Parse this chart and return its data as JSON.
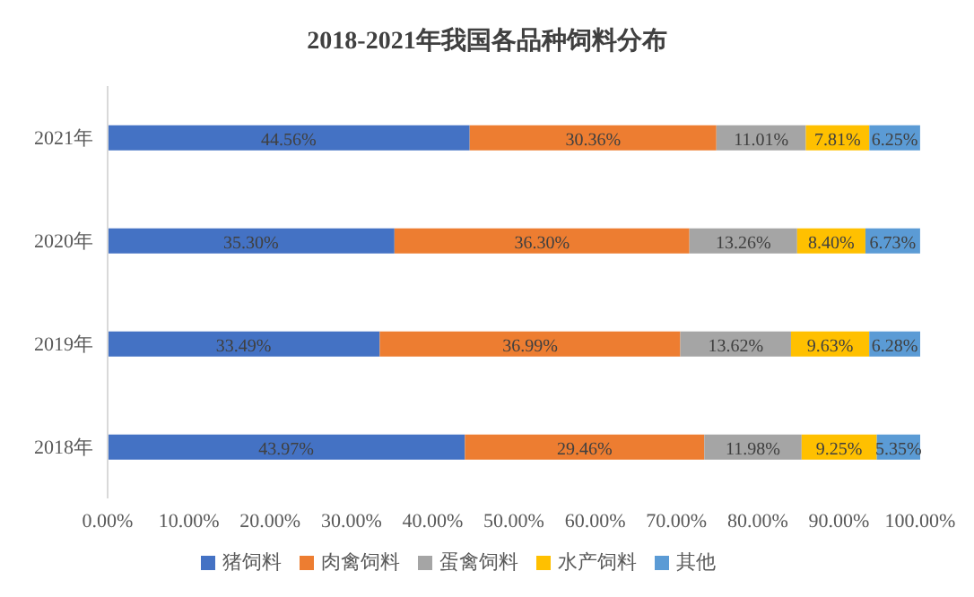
{
  "chart_data": {
    "type": "bar",
    "orientation": "horizontal",
    "stacked": true,
    "title": "2018-2021年我国各品种饲料分布",
    "categories": [
      "2021年",
      "2020年",
      "2019年",
      "2018年"
    ],
    "series": [
      {
        "name": "猪饲料",
        "color": "#4472c4",
        "values": [
          44.56,
          35.3,
          33.49,
          43.97
        ],
        "value_labels": [
          "44.56%",
          "35.30%",
          "33.49%",
          "43.97%"
        ]
      },
      {
        "name": "肉禽饲料",
        "color": "#ed7d31",
        "values": [
          30.36,
          36.3,
          36.99,
          29.46
        ],
        "value_labels": [
          "30.36%",
          "36.30%",
          "36.99%",
          "29.46%"
        ]
      },
      {
        "name": "蛋禽饲料",
        "color": "#a5a5a5",
        "values": [
          11.01,
          13.26,
          13.62,
          11.98
        ],
        "value_labels": [
          "11.01%",
          "13.26%",
          "13.62%",
          "11.98%"
        ]
      },
      {
        "name": "水产饲料",
        "color": "#ffc000",
        "values": [
          7.81,
          8.4,
          9.63,
          9.25
        ],
        "value_labels": [
          "7.81%",
          "8.40%",
          "9.63%",
          "9.25%"
        ]
      },
      {
        "name": "其他",
        "color": "#5b9bd5",
        "values": [
          6.25,
          6.73,
          6.28,
          5.35
        ],
        "value_labels": [
          "6.25%",
          "6.73%",
          "6.28%",
          "5.35%"
        ]
      }
    ],
    "xlim": [
      0,
      100
    ],
    "xticks": [
      {
        "value": 0,
        "label": "0.00%"
      },
      {
        "value": 10,
        "label": "10.00%"
      },
      {
        "value": 20,
        "label": "20.00%"
      },
      {
        "value": 30,
        "label": "30.00%"
      },
      {
        "value": 40,
        "label": "40.00%"
      },
      {
        "value": 50,
        "label": "50.00%"
      },
      {
        "value": 60,
        "label": "60.00%"
      },
      {
        "value": 70,
        "label": "70.00%"
      },
      {
        "value": 80,
        "label": "80.00%"
      },
      {
        "value": 90,
        "label": "90.00%"
      },
      {
        "value": 100,
        "label": "100.00%"
      }
    ],
    "legend": "bottom"
  }
}
